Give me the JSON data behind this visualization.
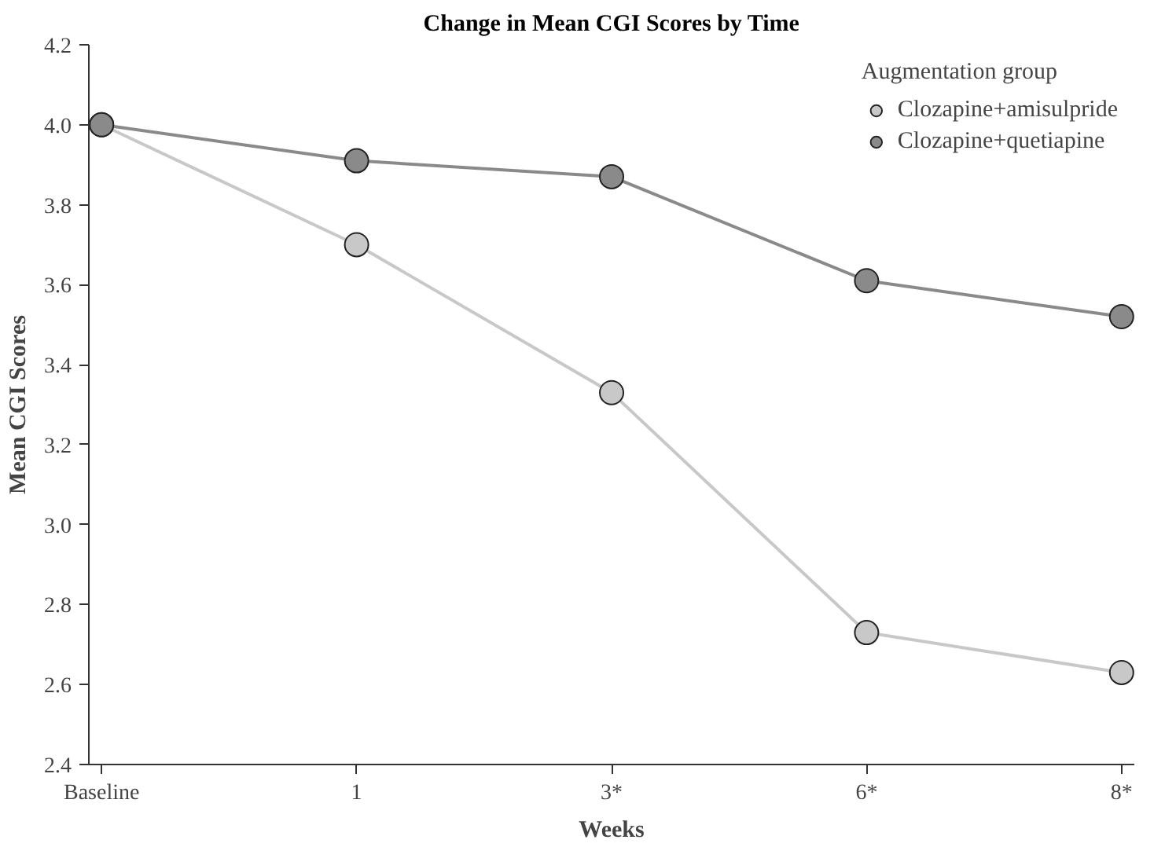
{
  "chart_data": {
    "type": "line",
    "title": "Change in Mean CGI Scores by Time",
    "xlabel": "Weeks",
    "ylabel": "Mean CGI Scores",
    "legend_title": "Augmentation group",
    "categories": [
      "Baseline",
      "1",
      "3*",
      "6*",
      "8*"
    ],
    "series": [
      {
        "name": "Clozapine+amisulpride",
        "color": "#c8c8c8",
        "values": [
          4.0,
          3.7,
          3.33,
          2.73,
          2.63
        ]
      },
      {
        "name": "Clozapine+quetiapine",
        "color": "#8a8a8a",
        "values": [
          4.0,
          3.91,
          3.87,
          3.61,
          3.52
        ]
      }
    ],
    "ylim": [
      2.4,
      4.2
    ],
    "yticks": [
      2.4,
      2.6,
      2.8,
      {
        "value": 3,
        "label": "3.0"
      },
      3.2,
      3.4,
      3.6,
      3.8,
      {
        "value": 4,
        "label": "4.0"
      },
      4.2
    ],
    "grid": false,
    "legend": "top right",
    "marker": "circle",
    "line_style": "solid"
  }
}
